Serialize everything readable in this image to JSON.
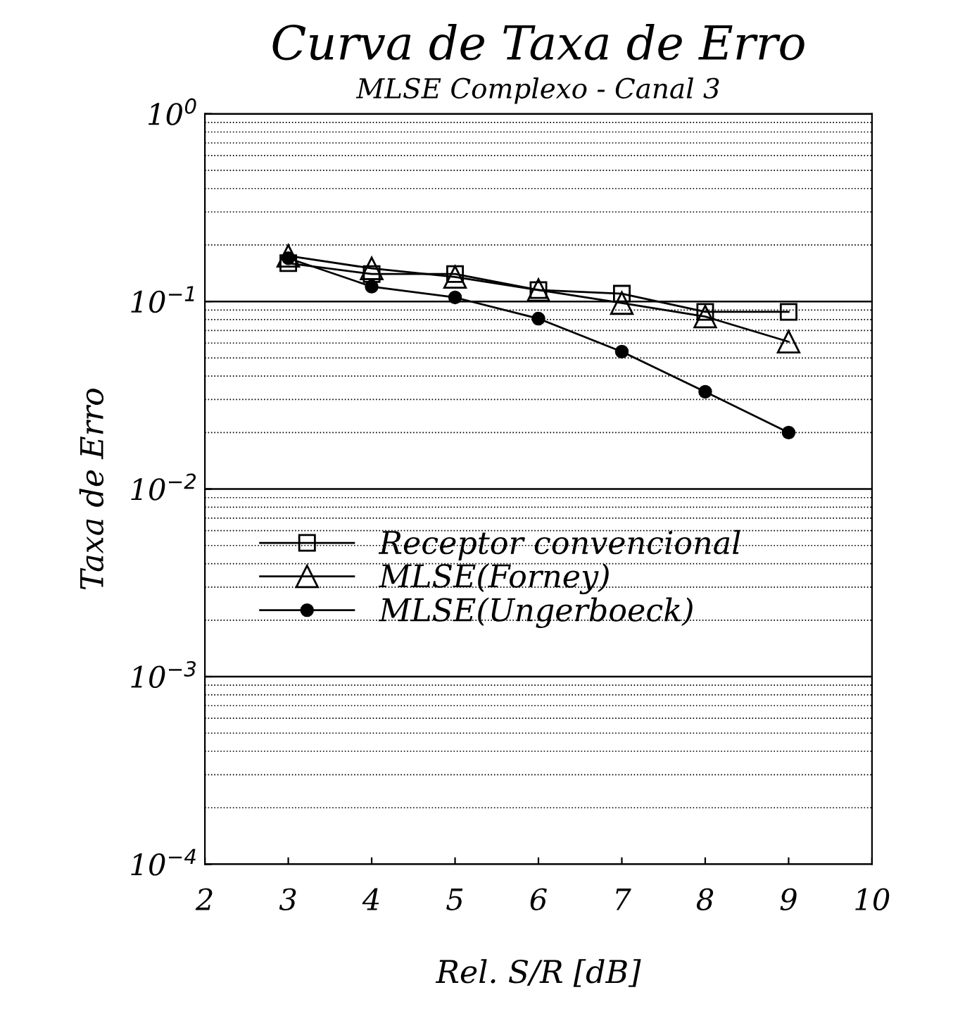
{
  "chart_data": {
    "type": "line",
    "title": "Curva de Taxa de Erro",
    "subtitle": "MLSE Complexo - Canal 3",
    "xlabel": "Rel. S/R [dB]",
    "ylabel": "Taxa de Erro",
    "x": [
      3,
      4,
      5,
      6,
      7,
      8,
      9
    ],
    "series": [
      {
        "name": "Receptor convencional",
        "color": "#000000",
        "marker": "square",
        "values": [
          0.16,
          0.14,
          0.14,
          0.115,
          0.11,
          0.088,
          0.088
        ]
      },
      {
        "name": "MLSE(Forney)",
        "color": "#000000",
        "marker": "triangle",
        "values": [
          0.175,
          0.15,
          0.135,
          0.115,
          0.098,
          0.083,
          0.061
        ]
      },
      {
        "name": "MLSE(Ungerboeck)",
        "color": "#000000",
        "marker": "circle",
        "values": [
          0.17,
          0.12,
          0.105,
          0.081,
          0.054,
          0.033,
          0.02
        ]
      }
    ],
    "log": "y",
    "xlim": [
      2,
      10
    ],
    "xticks": [
      2,
      3,
      4,
      5,
      6,
      7,
      8,
      9,
      10
    ],
    "ylim": [
      0.0001,
      1
    ],
    "yticks": [
      {
        "value": 0.0001,
        "label": "10$^{−4}$"
      },
      {
        "value": 0.001,
        "label": "10$^{−3}$"
      },
      {
        "value": 0.01,
        "label": "10$^{−2}$"
      },
      {
        "value": 0.1,
        "label": "10$^{−1}$"
      },
      {
        "value": 1,
        "label": "10$^{0}$"
      }
    ],
    "grid": "y",
    "legend": "left",
    "line_style": "solid"
  }
}
